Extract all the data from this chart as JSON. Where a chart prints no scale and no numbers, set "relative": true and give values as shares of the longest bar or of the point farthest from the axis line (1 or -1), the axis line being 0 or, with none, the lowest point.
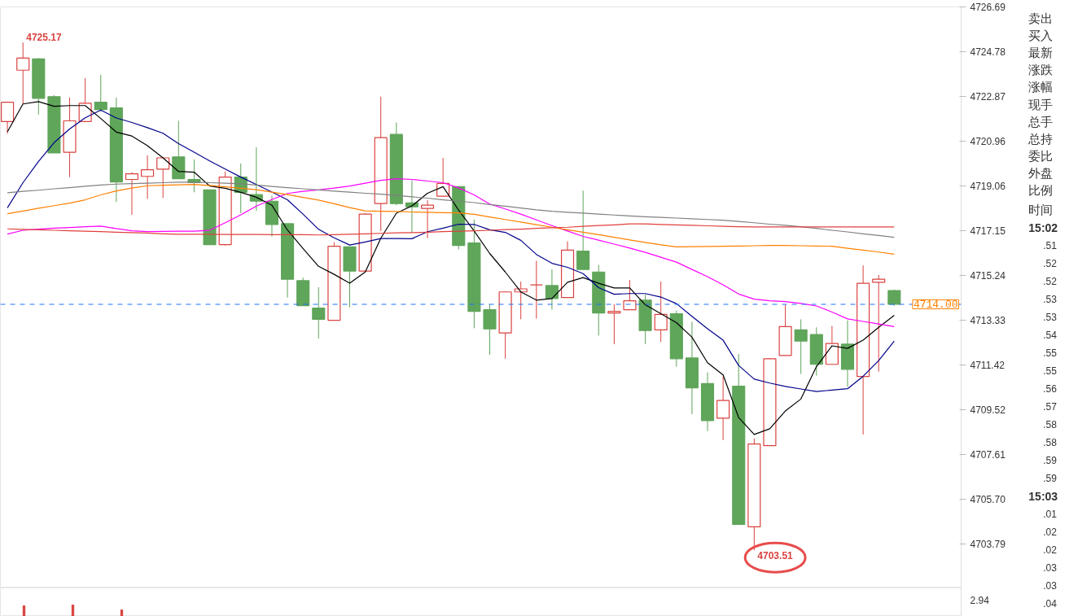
{
  "chart_data": [
    {
      "type": "candlestick",
      "categories": [
        null,
        null,
        null,
        null,
        null,
        null,
        null,
        null,
        null,
        null,
        null,
        null,
        null,
        null,
        null,
        null,
        null,
        null,
        null,
        null,
        null,
        null,
        null,
        null,
        null,
        null,
        null,
        null,
        null,
        null,
        null,
        null,
        null,
        null,
        null,
        null,
        null,
        null,
        null,
        null,
        null,
        null,
        null,
        null,
        null,
        null,
        null,
        null,
        null,
        null,
        null,
        null,
        null,
        null,
        null,
        null,
        null,
        null
      ],
      "ohlc": [
        [
          4721.8,
          4722.65,
          4721.28,
          4722.62
        ],
        [
          4723.99,
          4725.17,
          4722.55,
          4724.51
        ],
        [
          4724.47,
          4724.51,
          4722.1,
          4722.79
        ],
        [
          4722.86,
          4722.93,
          4720.46,
          4720.46
        ],
        [
          4720.49,
          4722.82,
          4719.43,
          4721.83
        ],
        [
          4721.8,
          4723.65,
          4721.8,
          4722.58
        ],
        [
          4722.62,
          4723.79,
          4722.21,
          4722.31
        ],
        [
          4722.38,
          4722.82,
          4718.37,
          4719.22
        ],
        [
          4719.33,
          4719.64,
          4717.82,
          4719.57
        ],
        [
          4719.46,
          4720.36,
          4718.5,
          4719.74
        ],
        [
          4719.77,
          4720.25,
          4718.54,
          4720.25
        ],
        [
          4720.29,
          4721.83,
          4719.36,
          4719.36
        ],
        [
          4719.33,
          4720.18,
          4718.78,
          4719.19
        ],
        [
          4718.88,
          4718.88,
          4716.55,
          4716.55
        ],
        [
          4716.55,
          4719.67,
          4716.51,
          4719.43
        ],
        [
          4719.43,
          4720.01,
          4717.89,
          4718.78
        ],
        [
          4718.68,
          4720.7,
          4717.99,
          4718.4
        ],
        [
          4718.4,
          4718.64,
          4716.89,
          4717.41
        ],
        [
          4717.44,
          4717.44,
          4714.29,
          4715.07
        ],
        [
          4715.01,
          4715.14,
          4713.94,
          4713.94
        ],
        [
          4713.84,
          4714.73,
          4712.54,
          4713.36
        ],
        [
          4713.32,
          4716.65,
          4713.32,
          4716.48
        ],
        [
          4716.45,
          4716.45,
          4713.87,
          4715.42
        ],
        [
          4715.42,
          4717.89,
          4715.42,
          4717.85
        ],
        [
          4718.3,
          4722.86,
          4717.13,
          4721.11
        ],
        [
          4721.25,
          4721.76,
          4718.23,
          4718.3
        ],
        [
          4718.33,
          4719.29,
          4717.06,
          4718.16
        ],
        [
          4718.09,
          4718.44,
          4716.82,
          4718.23
        ],
        [
          4718.61,
          4720.25,
          4718.61,
          4719.16
        ],
        [
          4719.02,
          4719.05,
          4716.34,
          4716.51
        ],
        [
          4716.62,
          4717.61,
          4712.98,
          4713.7
        ],
        [
          4713.77,
          4714.01,
          4711.85,
          4712.95
        ],
        [
          4712.78,
          4714.56,
          4711.68,
          4714.53
        ],
        [
          4714.53,
          4714.97,
          4713.36,
          4714.66
        ],
        [
          4714.83,
          4715.86,
          4713.39,
          4714.83
        ],
        [
          4714.8,
          4715.49,
          4713.77,
          4714.25
        ],
        [
          4714.29,
          4716.69,
          4714.29,
          4716.31
        ],
        [
          4716.27,
          4718.85,
          4715.49,
          4715.49
        ],
        [
          4715.38,
          4715.69,
          4712.67,
          4713.63
        ],
        [
          4713.63,
          4714.01,
          4712.3,
          4713.7
        ],
        [
          4713.77,
          4715.04,
          4713.77,
          4714.15
        ],
        [
          4714.18,
          4714.42,
          4712.3,
          4712.88
        ],
        [
          4712.91,
          4714.97,
          4712.4,
          4713.57
        ],
        [
          4713.6,
          4713.74,
          4711.34,
          4711.68
        ],
        [
          4711.71,
          4713.26,
          4709.31,
          4710.44
        ],
        [
          4710.62,
          4711.1,
          4708.59,
          4709.04
        ],
        [
          4709.14,
          4710.92,
          4708.21,
          4709.9
        ],
        [
          4710.51,
          4711.88,
          4704.58,
          4704.61
        ],
        [
          4704.51,
          4708.28,
          4703.51,
          4708.04
        ],
        [
          4707.97,
          4711.71,
          4707.97,
          4711.68
        ],
        [
          4711.82,
          4713.98,
          4711.82,
          4713.05
        ],
        [
          4712.91,
          4713.36,
          4711.03,
          4712.43
        ],
        [
          4712.71,
          4713.02,
          4710.96,
          4711.44
        ],
        [
          4711.44,
          4713.08,
          4711.44,
          4712.33
        ],
        [
          4712.3,
          4713.32,
          4710.48,
          4711.23
        ],
        [
          4710.92,
          4715.66,
          4708.45,
          4714.9
        ],
        [
          4714.94,
          4715.25,
          4711.13,
          4715.07
        ],
        [
          4714.59,
          4714.63,
          4713.94,
          4714.0
        ]
      ],
      "colors": [
        "#d9423f",
        "#d9423f",
        "#5fa55a",
        "#5fa55a",
        "#d9423f",
        "#d9423f",
        "#5fa55a",
        "#5fa55a",
        "#d9423f",
        "#d9423f",
        "#d9423f",
        "#5fa55a",
        "#5fa55a",
        "#5fa55a",
        "#d9423f",
        "#5fa55a",
        "#5fa55a",
        "#5fa55a",
        "#5fa55a",
        "#5fa55a",
        "#5fa55a",
        "#d9423f",
        "#5fa55a",
        "#d9423f",
        "#d9423f",
        "#5fa55a",
        "#5fa55a",
        "#d9423f",
        "#d9423f",
        "#5fa55a",
        "#5fa55a",
        "#5fa55a",
        "#d9423f",
        "#d9423f",
        "#d9423f",
        "#5fa55a",
        "#d9423f",
        "#5fa55a",
        "#5fa55a",
        "#d9423f",
        "#d9423f",
        "#5fa55a",
        "#d9423f",
        "#5fa55a",
        "#5fa55a",
        "#5fa55a",
        "#d9423f",
        "#5fa55a",
        "#d9423f",
        "#d9423f",
        "#d9423f",
        "#5fa55a",
        "#5fa55a",
        "#d9423f",
        "#5fa55a",
        "#d9423f",
        "#d9423f",
        "#5fa55a"
      ],
      "series": [
        {
          "type": "line",
          "color": "#000000",
          "values": [
            4721.36,
            4722.55,
            4722.65,
            4722.45,
            4722.48,
            4722.48,
            4721.93,
            4721.35,
            4721.18,
            4720.77,
            4720.25,
            4719.67,
            4719.64,
            4719.05,
            4718.95,
            4718.78,
            4718.57,
            4718.23,
            4717.17,
            4716.38,
            4715.62,
            4715.28,
            4714.9,
            4715.38,
            4716.82,
            4717.89,
            4718.2,
            4718.74,
            4719.02,
            4718.02,
            4717.13,
            4716.17,
            4715.38,
            4714.53,
            4714.18,
            4714.25,
            4714.94,
            4715.14,
            4714.9,
            4714.7,
            4714.7,
            4713.98,
            4713.6,
            4713.22,
            4712.6,
            4711.51,
            4710.99,
            4709.17,
            4708.45,
            4708.69,
            4709.45,
            4709.96,
            4711.34,
            4712.23,
            4712.12,
            4712.47,
            4713.02,
            4713.53
          ]
        },
        {
          "type": "line",
          "color": "#00008b",
          "values": [
            4718.12,
            4719.19,
            4720.1,
            4720.9,
            4721.48,
            4721.96,
            4722.29,
            4721.95,
            4721.76,
            4721.54,
            4721.3,
            4720.86,
            4720.49,
            4720.12,
            4719.77,
            4719.43,
            4719.11,
            4718.79,
            4718.46,
            4717.85,
            4717.2,
            4716.84,
            4716.53,
            4716.66,
            4716.81,
            4716.81,
            4716.8,
            4717.1,
            4717.25,
            4717.42,
            4717.41,
            4717.18,
            4717.07,
            4716.73,
            4716.13,
            4715.75,
            4715.58,
            4715.31,
            4714.71,
            4714.43,
            4714.46,
            4714.46,
            4714.31,
            4714.03,
            4713.49,
            4712.96,
            4712.47,
            4711.39,
            4710.81,
            4710.64,
            4710.5,
            4710.39,
            4710.28,
            4710.34,
            4710.4,
            4710.93,
            4711.6,
            4712.43
          ]
        },
        {
          "type": "line",
          "color": "#ff00ff",
          "values": [
            4717.0,
            4717.16,
            4717.21,
            4717.25,
            4717.28,
            4717.31,
            4717.34,
            4717.23,
            4717.14,
            4717.1,
            4717.11,
            4717.12,
            4717.12,
            4717.16,
            4717.48,
            4717.82,
            4718.19,
            4718.47,
            4718.73,
            4718.82,
            4718.88,
            4718.96,
            4719.05,
            4719.17,
            4719.29,
            4719.36,
            4719.33,
            4719.26,
            4719.19,
            4718.97,
            4718.67,
            4718.28,
            4718.07,
            4717.85,
            4717.6,
            4717.36,
            4717.13,
            4716.9,
            4716.74,
            4716.57,
            4716.4,
            4716.22,
            4716.01,
            4715.8,
            4715.49,
            4715.18,
            4714.83,
            4714.44,
            4714.22,
            4714.15,
            4714.12,
            4714.04,
            4713.93,
            4713.67,
            4713.38,
            4713.27,
            4713.16,
            4713.05
          ]
        },
        {
          "type": "line",
          "color": "#ff8000",
          "values": [
            4717.87,
            4717.98,
            4718.1,
            4718.21,
            4718.32,
            4718.46,
            4718.67,
            4718.84,
            4718.96,
            4719.06,
            4719.08,
            4719.1,
            4719.12,
            4719.07,
            4719.01,
            4718.95,
            4718.89,
            4718.79,
            4718.68,
            4718.56,
            4718.45,
            4718.29,
            4718.13,
            4717.99,
            4717.97,
            4717.96,
            4717.94,
            4717.93,
            4717.91,
            4717.9,
            4717.84,
            4717.73,
            4717.62,
            4717.51,
            4717.4,
            4717.29,
            4717.18,
            4717.08,
            4716.97,
            4716.86,
            4716.75,
            4716.64,
            4716.54,
            4716.45,
            4716.46,
            4716.47,
            4716.48,
            4716.49,
            4716.5,
            4716.51,
            4716.51,
            4716.5,
            4716.49,
            4716.48,
            4716.39,
            4716.31,
            4716.23,
            4716.14
          ]
        },
        {
          "type": "line",
          "color": "#808080",
          "values": [
            4718.76,
            4718.82,
            4718.87,
            4718.93,
            4718.98,
            4719.04,
            4719.09,
            4719.13,
            4719.15,
            4719.17,
            4719.19,
            4719.21,
            4719.21,
            4719.19,
            4719.17,
            4719.14,
            4719.09,
            4719.03,
            4718.98,
            4718.93,
            4718.88,
            4718.83,
            4718.79,
            4718.74,
            4718.7,
            4718.65,
            4718.59,
            4718.53,
            4718.46,
            4718.4,
            4718.34,
            4718.26,
            4718.19,
            4718.11,
            4718.03,
            4717.97,
            4717.93,
            4717.89,
            4717.85,
            4717.81,
            4717.77,
            4717.74,
            4717.71,
            4717.68,
            4717.65,
            4717.62,
            4717.59,
            4717.54,
            4717.48,
            4717.42,
            4717.37,
            4717.31,
            4717.24,
            4717.16,
            4717.09,
            4717.01,
            4716.94,
            4716.86
          ]
        },
        {
          "type": "line",
          "color": "#e0403c",
          "values": [
            4717.22,
            4717.2,
            4717.18,
            4717.16,
            4717.14,
            4717.12,
            4717.1,
            4717.08,
            4717.06,
            4717.04,
            4717.01,
            4716.99,
            4716.99,
            4716.99,
            4716.98,
            4716.98,
            4716.98,
            4716.97,
            4716.97,
            4716.97,
            4716.96,
            4716.97,
            4716.99,
            4717.01,
            4717.03,
            4717.05,
            4717.06,
            4717.08,
            4717.1,
            4717.12,
            4717.14,
            4717.16,
            4717.19,
            4717.21,
            4717.24,
            4717.27,
            4717.29,
            4717.33,
            4717.36,
            4717.39,
            4717.43,
            4717.43,
            4717.41,
            4717.39,
            4717.37,
            4717.35,
            4717.33,
            4717.31,
            4717.3,
            4717.3,
            4717.3,
            4717.3,
            4717.3,
            4717.3,
            4717.3,
            4717.3,
            4717.3,
            4717.3
          ]
        }
      ],
      "ylim": [
        4701.9,
        4726.69
      ],
      "yticks": [
        4703.79,
        {
          "value": 4705.7,
          "label": "4705.70"
        },
        4707.61,
        4709.52,
        4711.42,
        4713.33,
        4715.24,
        4717.15,
        4719.06,
        4720.96,
        4722.87,
        4724.78,
        4726.69
      ],
      "tick_labels": "y",
      "marker": "none",
      "line_style": "solid",
      "ref_lines": [
        {
          "axis": "y",
          "value": 4714.0,
          "label": "4714.00",
          "color": "#1e6fff",
          "line_style": "dashed"
        }
      ],
      "annotations": [
        "4725.17",
        "4703.51"
      ]
    },
    {
      "type": "bar",
      "relative": true,
      "categories": [
        null,
        null,
        null,
        null,
        null,
        null,
        null,
        null,
        null,
        null,
        null,
        null,
        null,
        null,
        null,
        null,
        null,
        null,
        null,
        null,
        null,
        null,
        null,
        null,
        null,
        null,
        null,
        null,
        null,
        null,
        null,
        null,
        null,
        null,
        null,
        null,
        null,
        null,
        null,
        null,
        null,
        null,
        null,
        null,
        null,
        null,
        null,
        null,
        null,
        null,
        null,
        null,
        null,
        null,
        null,
        null,
        null,
        null
      ],
      "values": [
        null,
        0.93,
        null,
        null,
        1,
        null,
        null,
        0.57,
        null,
        null,
        null,
        null,
        null,
        null,
        null,
        null,
        null,
        null,
        null,
        null,
        null,
        null,
        null,
        null,
        null,
        null,
        null,
        null,
        null,
        null,
        null,
        null,
        null,
        null,
        null,
        null,
        null,
        null,
        null,
        null,
        null,
        null,
        null,
        null,
        null,
        null,
        null,
        null,
        null,
        null,
        null,
        null,
        null,
        null,
        null,
        null,
        null,
        null
      ],
      "color": "#d9423f",
      "tick_labels": false,
      "annotations": [
        "2.94"
      ]
    },
    {
      "type": "other",
      "annotations": [
        "卖出",
        "买入",
        "最新",
        "涨跌",
        "涨幅",
        "现手",
        "总手",
        "总持",
        "委比",
        "外盘",
        "比例",
        "时间",
        "15:02",
        ".51",
        ".52",
        ".52",
        ".53",
        ".53",
        ".54",
        ".55",
        ".55",
        ".56",
        ".57",
        ".58",
        ".58",
        ".59",
        ".59",
        "15:03",
        ".01",
        ".02",
        ".02",
        ".03",
        ".03",
        ".04"
      ]
    }
  ]
}
